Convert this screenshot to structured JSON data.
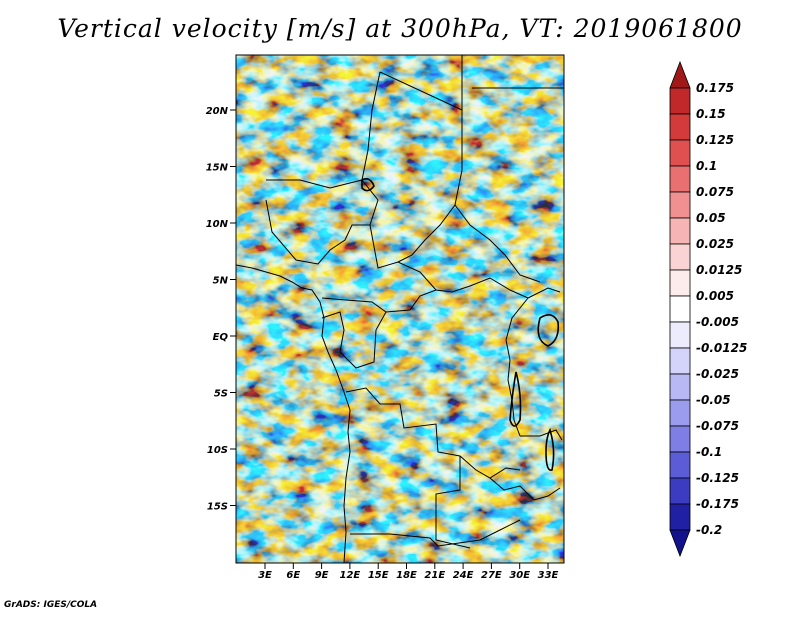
{
  "title": "Vertical velocity [m/s] at 300hPa, VT: 2019061800",
  "footer": "GrADS: IGES/COLA",
  "map": {
    "lat_ticks": [
      "20N",
      "15N",
      "10N",
      "5N",
      "EQ",
      "5S",
      "10S",
      "15S"
    ],
    "lon_ticks": [
      "3E",
      "6E",
      "9E",
      "12E",
      "15E",
      "18E",
      "21E",
      "24E",
      "27E",
      "30E",
      "33E"
    ]
  },
  "colorbar": {
    "levels": [
      "0.175",
      "0.15",
      "0.125",
      "0.1",
      "0.075",
      "0.05",
      "0.025",
      "0.0125",
      "0.005",
      "-0.005",
      "-0.0125",
      "-0.025",
      "-0.05",
      "-0.075",
      "-0.1",
      "-0.125",
      "-0.175",
      "-0.2"
    ],
    "colors": [
      "#a01818",
      "#c0282a",
      "#d33b3b",
      "#e05050",
      "#e87070",
      "#f09090",
      "#f6b4b4",
      "#fad4d4",
      "#fdecec",
      "#ffffff",
      "#ececfd",
      "#d4d4fa",
      "#b8b8f4",
      "#9c9cee",
      "#7e7ee4",
      "#5c5cd6",
      "#3c3cc0",
      "#2020a4",
      "#12128c"
    ]
  }
}
